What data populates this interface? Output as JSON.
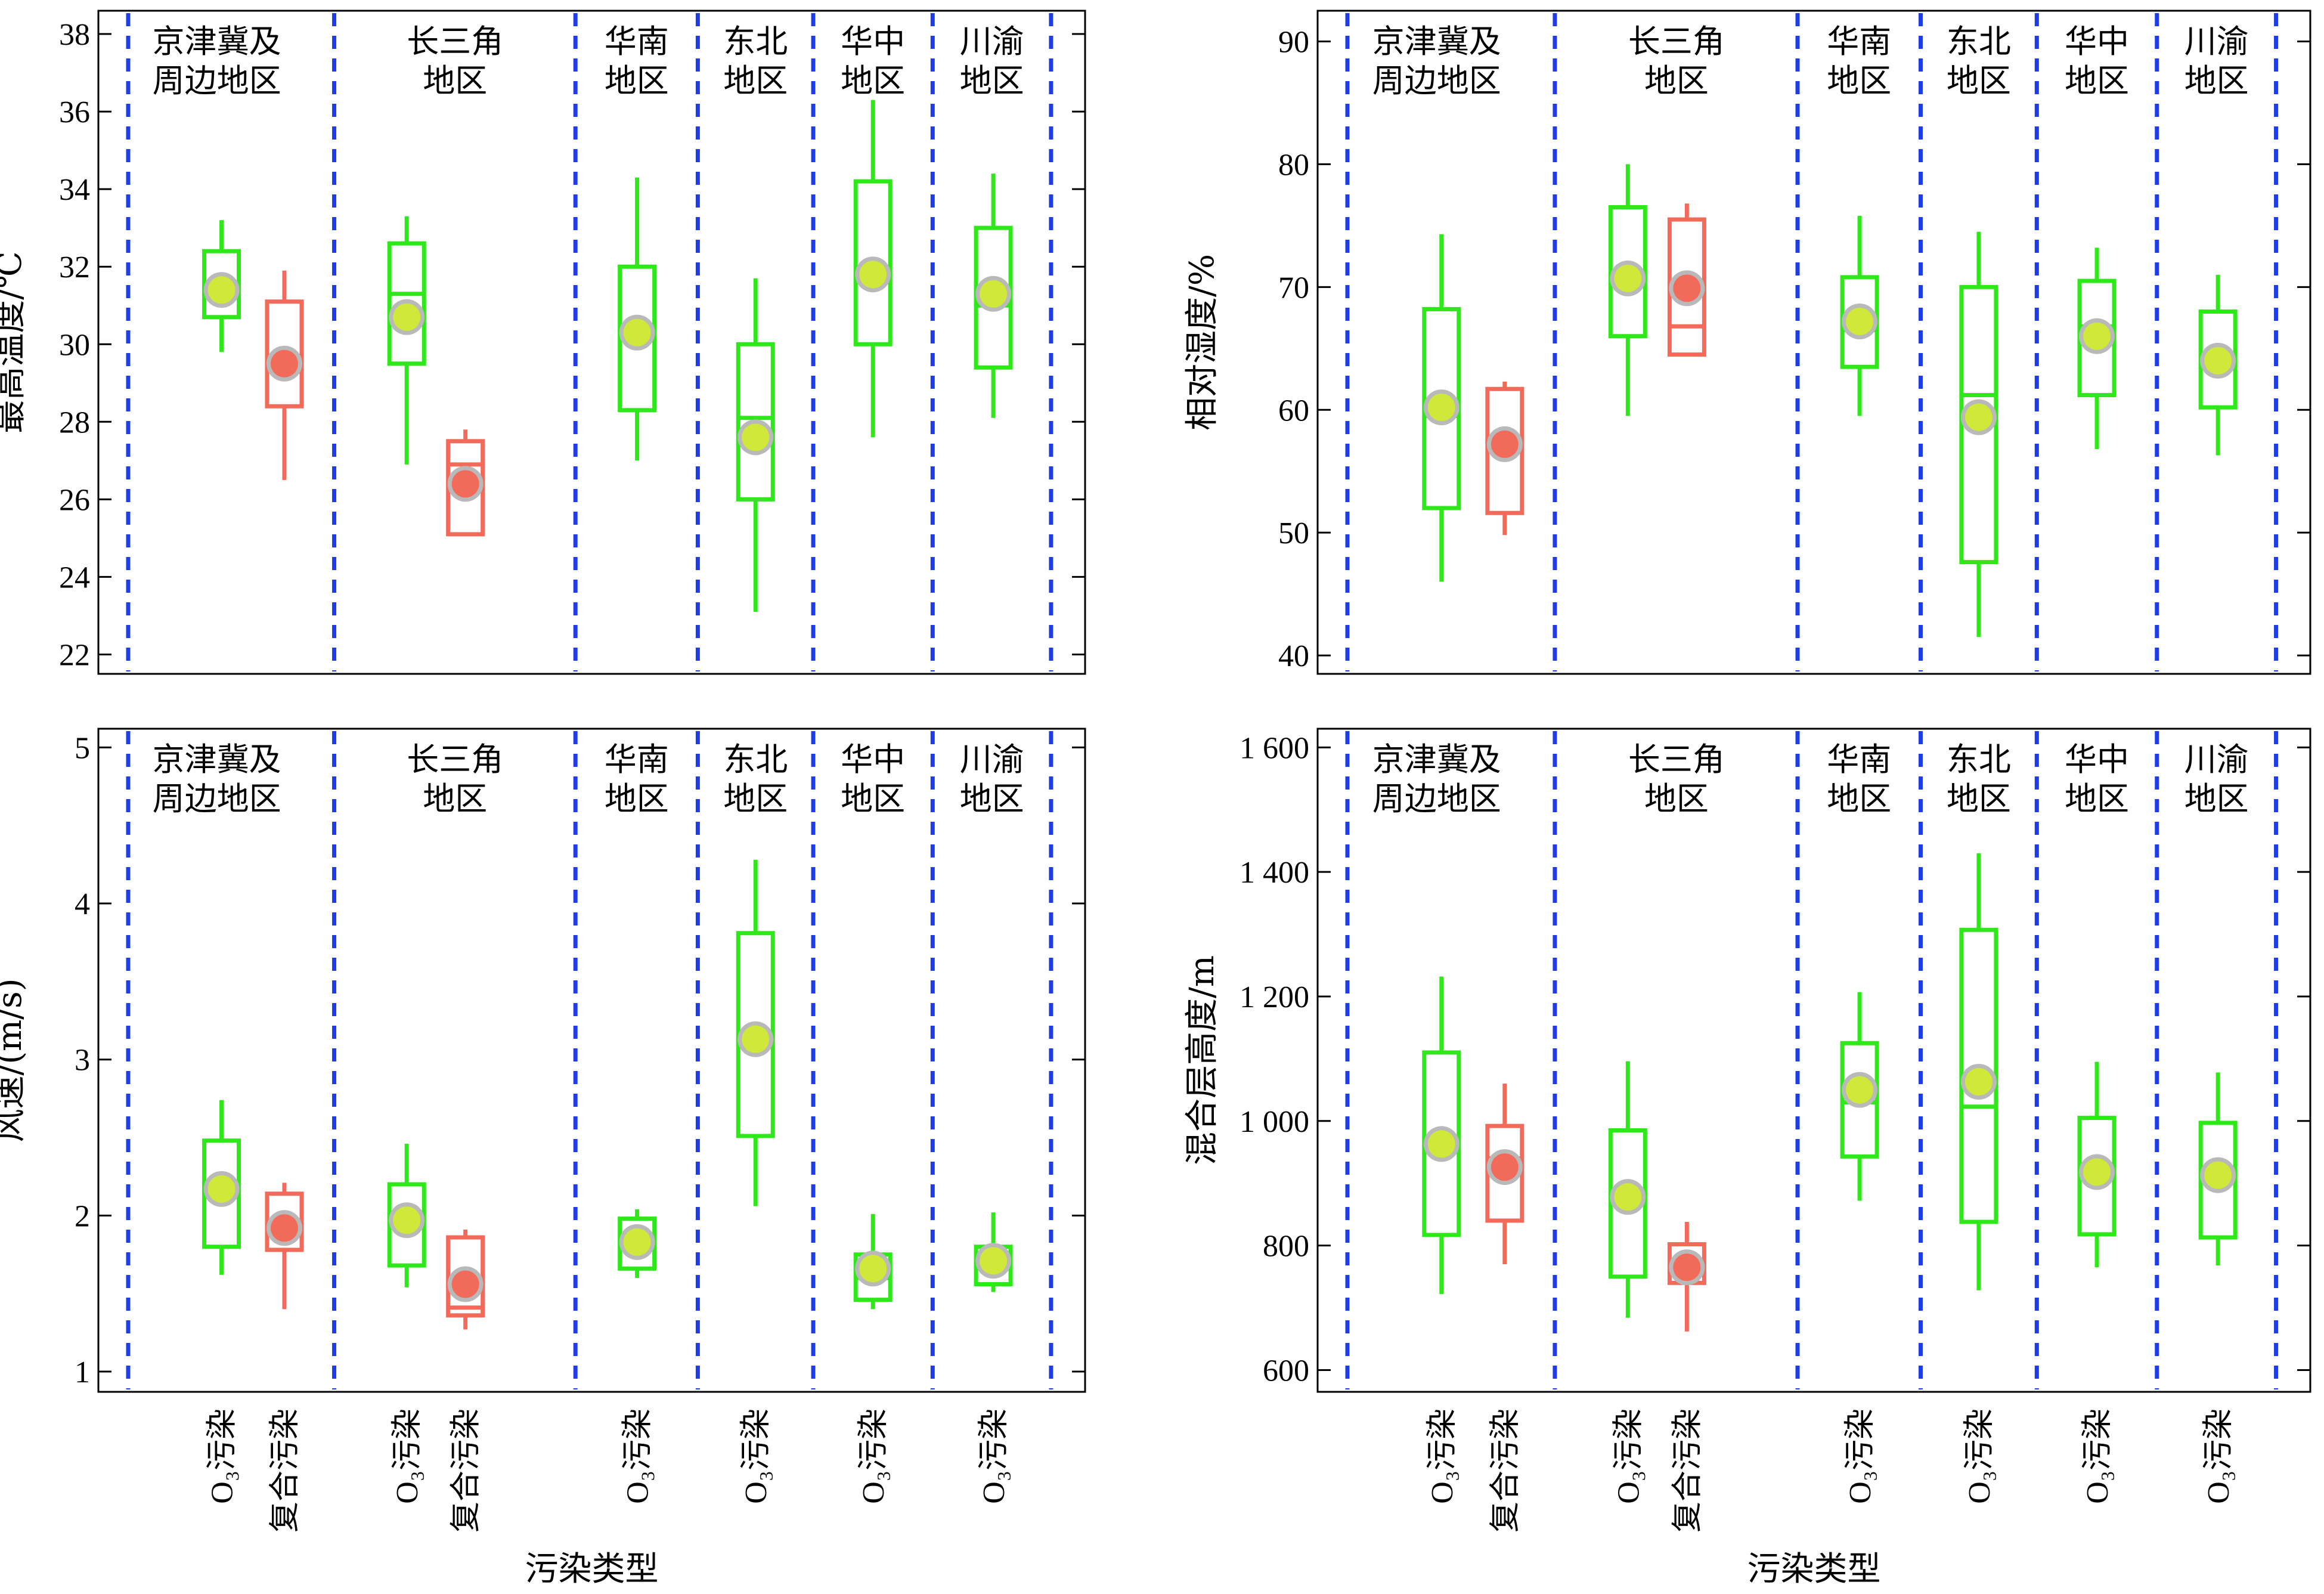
{
  "colors": {
    "o3": "#2ee81a",
    "o3_mean": "#cfe83a",
    "complex": "#f26a5a",
    "complex_mean": "#f26a5a",
    "mean_ring": "#b9b9b9",
    "separator": "#1f3de6",
    "axis": "#000000"
  },
  "xlabel_common": "污染类型",
  "chart_data": [
    {
      "type": "box",
      "title": "",
      "ylabel": "最高温度/℃",
      "ylim": [
        21.5,
        38.6
      ],
      "yticks": [
        22,
        24,
        26,
        28,
        30,
        32,
        34,
        36,
        38
      ],
      "ytick_labels": [
        "22",
        "24",
        "26",
        "28",
        "30",
        "32",
        "34",
        "36",
        "38"
      ],
      "xlabel": "污染类型",
      "regions": [
        {
          "line1": "京津冀及",
          "line2": "周边地区"
        },
        {
          "line1": "长三角",
          "line2": "地区"
        },
        {
          "line1": "华南",
          "line2": "地区"
        },
        {
          "line1": "东北",
          "line2": "地区"
        },
        {
          "line1": "华中",
          "line2": "地区"
        },
        {
          "line1": "川渝",
          "line2": "地区"
        }
      ],
      "categories": [
        "O₃污染",
        "复合污染",
        "O₃污染",
        "复合污染",
        "O₃污染",
        "O₃污染",
        "O₃污染",
        "O₃污染"
      ],
      "series_type": [
        "o3",
        "complex",
        "o3",
        "complex",
        "o3",
        "o3",
        "o3",
        "o3"
      ],
      "boxes": [
        {
          "whisker_low": 29.8,
          "q1": 30.7,
          "median": 31.2,
          "q3": 32.4,
          "whisker_high": 33.2,
          "mean": 31.4
        },
        {
          "whisker_low": 26.5,
          "q1": 28.4,
          "median": 29.3,
          "q3": 31.1,
          "whisker_high": 31.9,
          "mean": 29.5
        },
        {
          "whisker_low": 26.9,
          "q1": 29.5,
          "median": 31.3,
          "q3": 32.6,
          "whisker_high": 33.3,
          "mean": 30.7
        },
        {
          "whisker_low": 25.1,
          "q1": 25.1,
          "median": 26.9,
          "q3": 27.5,
          "whisker_high": 27.8,
          "mean": 26.4
        },
        {
          "whisker_low": 27.0,
          "q1": 28.3,
          "median": 30.1,
          "q3": 32.0,
          "whisker_high": 34.3,
          "mean": 30.3
        },
        {
          "whisker_low": 23.1,
          "q1": 26.0,
          "median": 28.1,
          "q3": 30.0,
          "whisker_high": 31.7,
          "mean": 27.6
        },
        {
          "whisker_low": 27.6,
          "q1": 30.0,
          "median": 31.6,
          "q3": 34.2,
          "whisker_high": 36.3,
          "mean": 31.8
        },
        {
          "whisker_low": 28.1,
          "q1": 29.4,
          "median": 31.0,
          "q3": 33.0,
          "whisker_high": 34.4,
          "mean": 31.3
        }
      ]
    },
    {
      "type": "box",
      "title": "",
      "ylabel": "相对湿度/%",
      "ylim": [
        38.5,
        92.5
      ],
      "yticks": [
        40,
        50,
        60,
        70,
        80,
        90
      ],
      "ytick_labels": [
        "40",
        "50",
        "60",
        "70",
        "80",
        "90"
      ],
      "xlabel": "污染类型",
      "regions": [
        {
          "line1": "京津冀及",
          "line2": "周边地区"
        },
        {
          "line1": "长三角",
          "line2": "地区"
        },
        {
          "line1": "华南",
          "line2": "地区"
        },
        {
          "line1": "东北",
          "line2": "地区"
        },
        {
          "line1": "华中",
          "line2": "地区"
        },
        {
          "line1": "川渝",
          "line2": "地区"
        }
      ],
      "categories": [
        "O₃污染",
        "复合污染",
        "O₃污染",
        "复合污染",
        "O₃污染",
        "O₃污染",
        "O₃污染",
        "O₃污染"
      ],
      "series_type": [
        "o3",
        "complex",
        "o3",
        "complex",
        "o3",
        "o3",
        "o3",
        "o3"
      ],
      "boxes": [
        {
          "whisker_low": 46.0,
          "q1": 52.0,
          "median": 59.5,
          "q3": 68.2,
          "whisker_high": 74.3,
          "mean": 60.2
        },
        {
          "whisker_low": 49.8,
          "q1": 51.6,
          "median": 57.2,
          "q3": 61.7,
          "whisker_high": 62.3,
          "mean": 57.2
        },
        {
          "whisker_low": 59.5,
          "q1": 66.0,
          "median": 71.0,
          "q3": 76.5,
          "whisker_high": 80.0,
          "mean": 70.7
        },
        {
          "whisker_low": 64.5,
          "q1": 64.5,
          "median": 66.8,
          "q3": 75.5,
          "whisker_high": 76.8,
          "mean": 69.9
        },
        {
          "whisker_low": 59.5,
          "q1": 63.5,
          "median": 66.5,
          "q3": 70.8,
          "whisker_high": 75.8,
          "mean": 67.2
        },
        {
          "whisker_low": 41.5,
          "q1": 47.6,
          "median": 61.2,
          "q3": 70.0,
          "whisker_high": 74.5,
          "mean": 59.4
        },
        {
          "whisker_low": 56.8,
          "q1": 61.2,
          "median": 66.8,
          "q3": 70.5,
          "whisker_high": 73.2,
          "mean": 66.0
        },
        {
          "whisker_low": 56.3,
          "q1": 60.2,
          "median": 63.5,
          "q3": 68.0,
          "whisker_high": 71.0,
          "mean": 64.0
        }
      ]
    },
    {
      "type": "box",
      "title": "",
      "ylabel": "风速/(m/s)",
      "ylim": [
        0.87,
        5.12
      ],
      "yticks": [
        1,
        2,
        3,
        4,
        5
      ],
      "ytick_labels": [
        "1",
        "2",
        "3",
        "4",
        "5"
      ],
      "xlabel": "污染类型",
      "regions": [
        {
          "line1": "京津冀及",
          "line2": "周边地区"
        },
        {
          "line1": "长三角",
          "line2": "地区"
        },
        {
          "line1": "华南",
          "line2": "地区"
        },
        {
          "line1": "东北",
          "line2": "地区"
        },
        {
          "line1": "华中",
          "line2": "地区"
        },
        {
          "line1": "川渝",
          "line2": "地区"
        }
      ],
      "categories": [
        "O₃污染",
        "复合污染",
        "O₃污染",
        "复合污染",
        "O₃污染",
        "O₃污染",
        "O₃污染",
        "O₃污染"
      ],
      "series_type": [
        "o3",
        "complex",
        "o3",
        "complex",
        "o3",
        "o3",
        "o3",
        "o3"
      ],
      "boxes": [
        {
          "whisker_low": 1.62,
          "q1": 1.8,
          "median": 2.12,
          "q3": 2.48,
          "whisker_high": 2.74,
          "mean": 2.17
        },
        {
          "whisker_low": 1.4,
          "q1": 1.78,
          "median": 1.9,
          "q3": 2.14,
          "whisker_high": 2.21,
          "mean": 1.92
        },
        {
          "whisker_low": 1.54,
          "q1": 1.68,
          "median": 1.96,
          "q3": 2.2,
          "whisker_high": 2.46,
          "mean": 1.97
        },
        {
          "whisker_low": 1.27,
          "q1": 1.36,
          "median": 1.41,
          "q3": 1.86,
          "whisker_high": 1.91,
          "mean": 1.56
        },
        {
          "whisker_low": 1.6,
          "q1": 1.66,
          "median": 1.84,
          "q3": 1.98,
          "whisker_high": 2.04,
          "mean": 1.83
        },
        {
          "whisker_low": 2.06,
          "q1": 2.51,
          "median": 3.14,
          "q3": 3.81,
          "whisker_high": 4.28,
          "mean": 3.13
        },
        {
          "whisker_low": 1.4,
          "q1": 1.46,
          "median": 1.6,
          "q3": 1.75,
          "whisker_high": 2.01,
          "mean": 1.66
        },
        {
          "whisker_low": 1.51,
          "q1": 1.56,
          "median": 1.72,
          "q3": 1.8,
          "whisker_high": 2.02,
          "mean": 1.71
        }
      ]
    },
    {
      "type": "box",
      "title": "",
      "ylabel": "混合层高度/m",
      "ylim": [
        565,
        1630
      ],
      "yticks": [
        600,
        800,
        1000,
        1200,
        1400,
        1600
      ],
      "ytick_labels": [
        "600",
        "800",
        "1 000",
        "1 200",
        "1 400",
        "1 600"
      ],
      "xlabel": "污染类型",
      "regions": [
        {
          "line1": "京津冀及",
          "line2": "周边地区"
        },
        {
          "line1": "长三角",
          "line2": "地区"
        },
        {
          "line1": "华南",
          "line2": "地区"
        },
        {
          "line1": "东北",
          "line2": "地区"
        },
        {
          "line1": "华中",
          "line2": "地区"
        },
        {
          "line1": "川渝",
          "line2": "地区"
        }
      ],
      "categories": [
        "O₃污染",
        "复合污染",
        "O₃污染",
        "复合污染",
        "O₃污染",
        "O₃污染",
        "O₃污染",
        "O₃污染"
      ],
      "series_type": [
        "o3",
        "complex",
        "o3",
        "complex",
        "o3",
        "o3",
        "o3",
        "o3"
      ],
      "boxes": [
        {
          "whisker_low": 722,
          "q1": 817,
          "median": 950,
          "q3": 1110,
          "whisker_high": 1232,
          "mean": 963
        },
        {
          "whisker_low": 770,
          "q1": 840,
          "median": 940,
          "q3": 992,
          "whisker_high": 1060,
          "mean": 926
        },
        {
          "whisker_low": 684,
          "q1": 750,
          "median": 870,
          "q3": 985,
          "whisker_high": 1096,
          "mean": 878
        },
        {
          "whisker_low": 662,
          "q1": 740,
          "median": 768,
          "q3": 802,
          "whisker_high": 838,
          "mean": 765
        },
        {
          "whisker_low": 872,
          "q1": 943,
          "median": 1030,
          "q3": 1125,
          "whisker_high": 1207,
          "mean": 1050
        },
        {
          "whisker_low": 728,
          "q1": 838,
          "median": 1023,
          "q3": 1307,
          "whisker_high": 1430,
          "mean": 1063
        },
        {
          "whisker_low": 765,
          "q1": 818,
          "median": 912,
          "q3": 1005,
          "whisker_high": 1095,
          "mean": 918
        },
        {
          "whisker_low": 768,
          "q1": 813,
          "median": 910,
          "q3": 997,
          "whisker_high": 1078,
          "mean": 913
        }
      ]
    }
  ]
}
